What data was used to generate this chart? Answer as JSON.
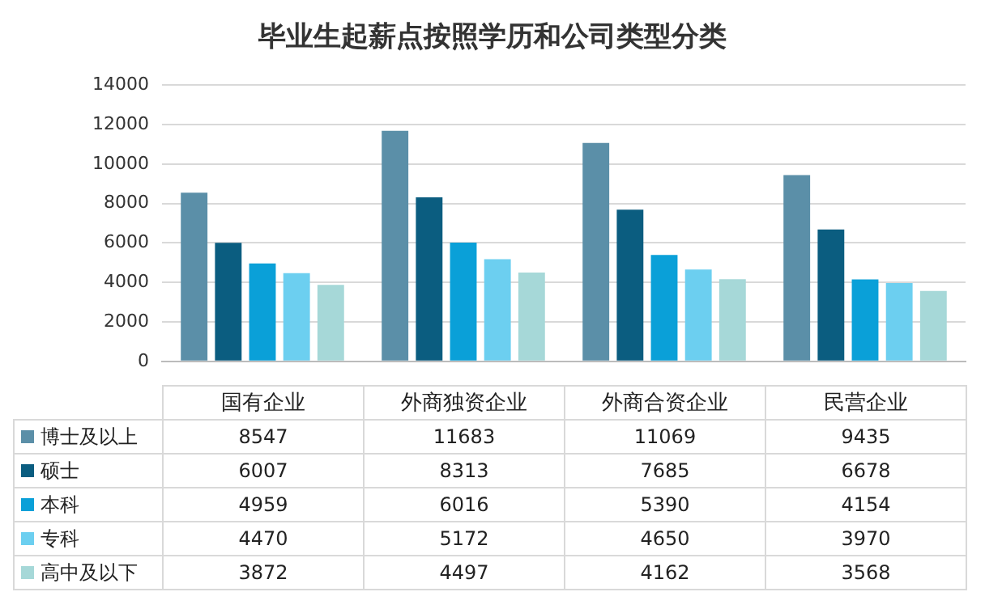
{
  "chart_data": {
    "type": "bar",
    "title": "毕业生起薪点按照学历和公司类型分类",
    "categories": [
      "国有企业",
      "外商独资企业",
      "外商合资企业",
      "民营企业"
    ],
    "series": [
      {
        "name": "博士及以上",
        "color": "#5b8fa8",
        "values": [
          8547,
          11683,
          11069,
          9435
        ]
      },
      {
        "name": "硕士",
        "color": "#0b5d80",
        "values": [
          6007,
          8313,
          7685,
          6678
        ]
      },
      {
        "name": "本科",
        "color": "#0aa0d8",
        "values": [
          4959,
          6016,
          5390,
          4154
        ]
      },
      {
        "name": "专科",
        "color": "#6ccff0",
        "values": [
          4470,
          5172,
          4650,
          3970
        ]
      },
      {
        "name": "高中及以下",
        "color": "#a6d8d8",
        "values": [
          3872,
          4497,
          4162,
          3568
        ]
      }
    ],
    "ylim": [
      0,
      14000
    ],
    "yticks": [
      0,
      2000,
      4000,
      6000,
      8000,
      10000,
      12000,
      14000
    ],
    "grid": "y",
    "legend": "bottom",
    "data_labels": true
  }
}
